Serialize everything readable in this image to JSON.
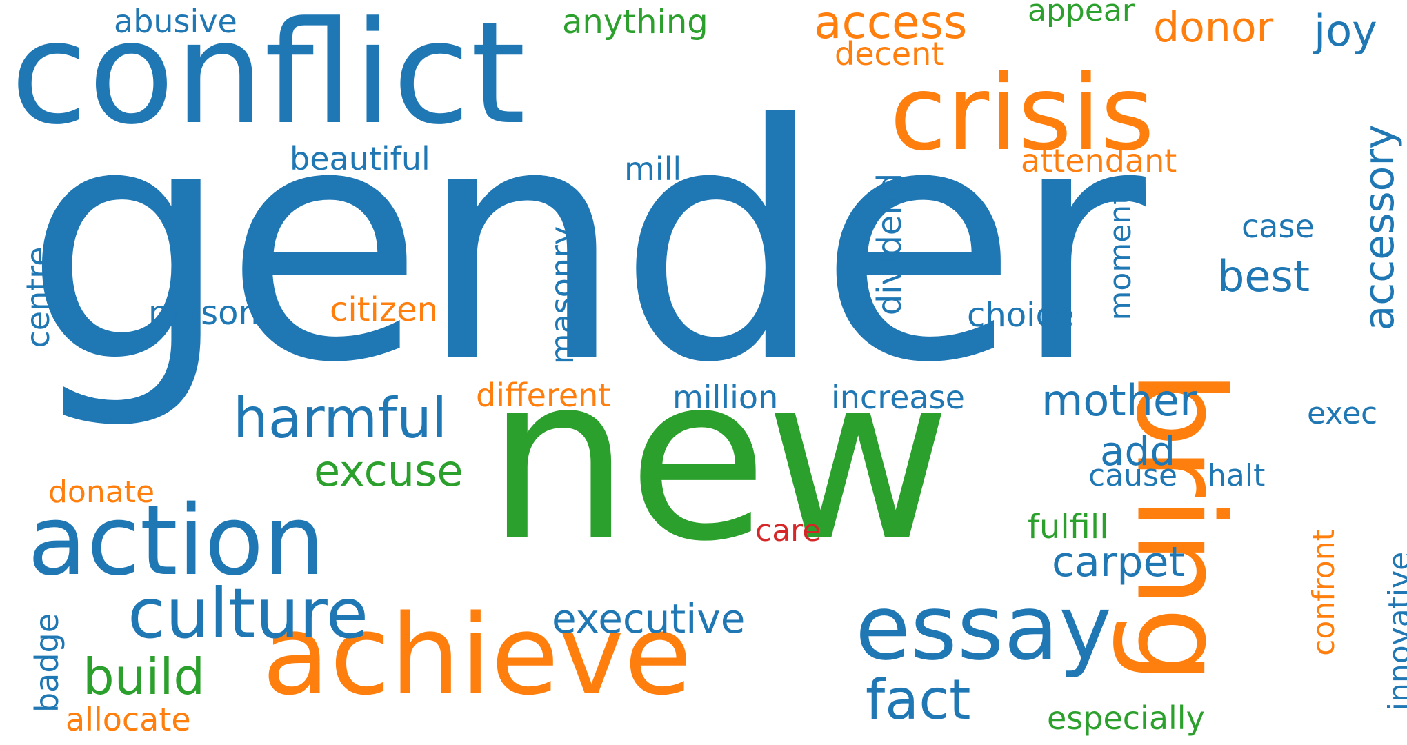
{
  "colors": {
    "blue": "#1f77b4",
    "orange": "#ff7f0e",
    "green": "#2ca02c",
    "red": "#d62728",
    "background": "#ffffff"
  },
  "words": {
    "gender": "gender",
    "new": "new",
    "conflict": "conflict",
    "crisis": "crisis",
    "bring": "bring",
    "achieve": "achieve",
    "action": "action",
    "essay": "essay",
    "culture": "culture",
    "harmful": "harmful",
    "access": "access",
    "donor": "donor",
    "joy": "joy",
    "accessory": "accessory",
    "abusive": "abusive",
    "anything": "anything",
    "appear": "appear",
    "decent": "decent",
    "beautiful": "beautiful",
    "mill": "mill",
    "attendant": "attendant",
    "dividend": "dividend",
    "moment": "moment",
    "case": "case",
    "masonry": "masonry",
    "best": "best",
    "centre": "centre",
    "mason": "mason",
    "citizen": "citizen",
    "choice": "choice",
    "different": "different",
    "million": "million",
    "increase": "increase",
    "mother": "mother",
    "exec": "exec",
    "add": "add",
    "excuse": "excuse",
    "cause": "cause",
    "halt": "halt",
    "donate": "donate",
    "care": "care",
    "fulfill": "fulfill",
    "carpet": "carpet",
    "confront": "confront",
    "innovative": "innovative",
    "executive": "executive",
    "badge": "badge",
    "build": "build",
    "fact": "fact",
    "allocate": "allocate",
    "especially": "especially"
  }
}
